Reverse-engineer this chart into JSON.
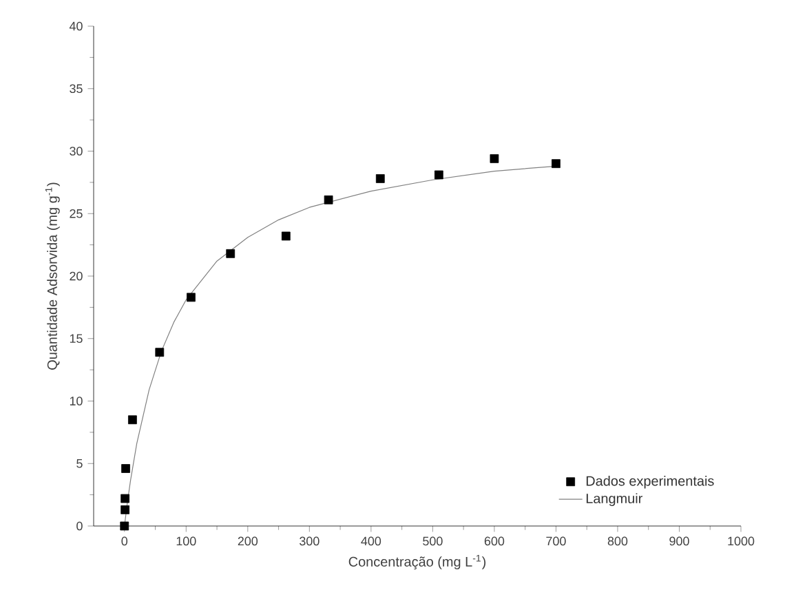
{
  "chart_data": {
    "type": "scatter",
    "xlabel": "Concentração (mg L$^{-1}$)",
    "ylabel": "Quantidade Adsorvida (mg g$^{-1}$)",
    "xlim": [
      -50,
      1000
    ],
    "ylim": [
      0,
      40
    ],
    "xticks": [
      0,
      100,
      200,
      300,
      400,
      500,
      600,
      700,
      800,
      900,
      1000
    ],
    "yticks": [
      0,
      5,
      10,
      15,
      20,
      25,
      30,
      35,
      40
    ],
    "legend": "bottom right",
    "grid": false,
    "series": [
      {
        "name": "Dados experimentais",
        "marker": "square",
        "color": "#000000",
        "x": [
          0,
          1,
          1,
          2,
          13,
          57,
          108,
          172,
          262,
          331,
          415,
          510,
          600,
          700
        ],
        "values": [
          0,
          1.3,
          2.2,
          4.6,
          8.5,
          13.9,
          18.3,
          21.8,
          23.2,
          26.1,
          27.8,
          28.1,
          29.4,
          29.0
        ]
      },
      {
        "name": "Langmuir",
        "type": "line",
        "marker": "none",
        "line_style": "solid",
        "color": "#808080",
        "x": [
          0,
          5,
          10,
          20,
          40,
          60,
          80,
          100,
          150,
          200,
          250,
          300,
          400,
          500,
          600,
          700
        ],
        "values": [
          0,
          2.0,
          3.7,
          6.6,
          10.9,
          14.0,
          16.3,
          18.1,
          21.2,
          23.1,
          24.5,
          25.5,
          26.8,
          27.7,
          28.4,
          28.8
        ]
      }
    ]
  }
}
